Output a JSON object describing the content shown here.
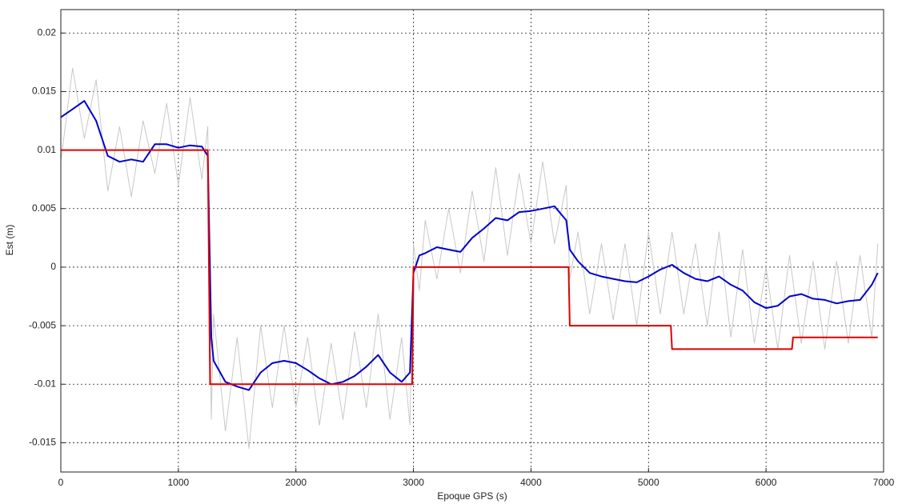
{
  "chart_data": {
    "type": "line",
    "x_label": "Epoque GPS (s)",
    "y_label": "Est (m)",
    "x": [
      0,
      100,
      200,
      300,
      400,
      500,
      600,
      700,
      800,
      900,
      1000,
      1100,
      1200,
      1250,
      1280,
      1300,
      1400,
      1500,
      1600,
      1700,
      1800,
      1900,
      2000,
      2100,
      2200,
      2300,
      2400,
      2500,
      2600,
      2700,
      2800,
      2900,
      2970,
      3000,
      3050,
      3100,
      3200,
      3300,
      3400,
      3500,
      3600,
      3700,
      3800,
      3900,
      4000,
      4100,
      4200,
      4300,
      4330,
      4400,
      4500,
      4600,
      4700,
      4800,
      4900,
      5000,
      5100,
      5200,
      5300,
      5400,
      5500,
      5600,
      5700,
      5800,
      5900,
      6000,
      6100,
      6200,
      6300,
      6400,
      6500,
      6600,
      6700,
      6800,
      6900,
      6950
    ],
    "series": [
      {
        "color": "#c8c8c8",
        "width": 1,
        "values": [
          0.009,
          0.017,
          0.011,
          0.016,
          0.0065,
          0.012,
          0.006,
          0.0125,
          0.008,
          0.014,
          0.007,
          0.0145,
          0.0075,
          0.012,
          -0.013,
          -0.004,
          -0.014,
          -0.006,
          -0.0155,
          -0.005,
          -0.012,
          -0.005,
          -0.012,
          -0.006,
          -0.0135,
          -0.0065,
          -0.013,
          -0.0055,
          -0.012,
          -0.004,
          -0.013,
          -0.006,
          -0.0135,
          0.002,
          -0.002,
          0.004,
          -0.001,
          0.005,
          -0.0005,
          0.0065,
          0.0005,
          0.0085,
          0.001,
          0.008,
          0.002,
          0.009,
          0.002,
          0.007,
          -0.001,
          0.003,
          -0.004,
          0.002,
          -0.0045,
          0.002,
          -0.005,
          0.003,
          -0.004,
          0.003,
          -0.004,
          0.002,
          -0.005,
          0.003,
          -0.006,
          0.0015,
          -0.0065,
          0,
          -0.007,
          0.001,
          -0.0065,
          0.0005,
          -0.007,
          0.0005,
          -0.0065,
          0.001,
          -0.006,
          0.002
        ]
      },
      {
        "color": "#0000cc",
        "width": 2,
        "values": [
          0.0128,
          0.0135,
          0.0142,
          0.0125,
          0.0095,
          0.009,
          0.0092,
          0.009,
          0.0105,
          0.0105,
          0.0102,
          0.0104,
          0.0103,
          0.0095,
          -0.006,
          -0.008,
          -0.0098,
          -0.0102,
          -0.0105,
          -0.009,
          -0.0082,
          -0.008,
          -0.0082,
          -0.0088,
          -0.0095,
          -0.01,
          -0.0098,
          -0.0093,
          -0.0085,
          -0.0075,
          -0.009,
          -0.0098,
          -0.009,
          -0.0005,
          0.001,
          0.0012,
          0.0017,
          0.0015,
          0.0013,
          0.0025,
          0.0033,
          0.0042,
          0.004,
          0.0047,
          0.0048,
          0.005,
          0.0052,
          0.004,
          0.0015,
          0.0005,
          -0.0005,
          -0.0008,
          -0.001,
          -0.0012,
          -0.0013,
          -0.0008,
          -0.0002,
          0.0002,
          -0.0005,
          -0.001,
          -0.0012,
          -0.0008,
          -0.0015,
          -0.002,
          -0.003,
          -0.0035,
          -0.0033,
          -0.0025,
          -0.0023,
          -0.0027,
          -0.0028,
          -0.0031,
          -0.0029,
          -0.0028,
          -0.0015,
          -0.0005
        ]
      },
      {
        "color": "#e00000",
        "width": 2,
        "x": [
          0,
          1250,
          1270,
          2990,
          3000,
          4320,
          4330,
          5190,
          5200,
          6220,
          6230,
          6950
        ],
        "values": [
          0.01,
          0.01,
          -0.01,
          -0.01,
          0,
          0,
          -0.005,
          -0.005,
          -0.007,
          -0.007,
          -0.006,
          -0.006
        ]
      }
    ],
    "xlim": [
      0,
      7000
    ],
    "xticks": [
      0,
      1000,
      2000,
      3000,
      4000,
      5000,
      6000,
      7000
    ],
    "ylim": [
      -0.0175,
      0.022
    ],
    "yticks": [
      -0.015,
      -0.01,
      -0.005,
      0,
      0.005,
      0.01,
      0.015,
      0.02
    ],
    "grid": true
  }
}
